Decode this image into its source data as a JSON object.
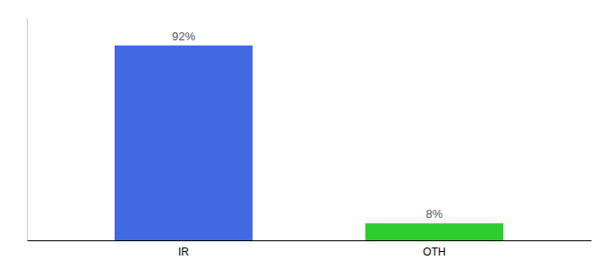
{
  "chart_data": {
    "type": "bar",
    "categories": [
      "IR",
      "OTH"
    ],
    "values": [
      92,
      8
    ],
    "value_labels": [
      "92%",
      "8%"
    ],
    "colors": [
      "#4169e1",
      "#2ecc2e"
    ],
    "ylim": [
      0,
      105
    ],
    "data_labels": true,
    "tick_labels": "x"
  }
}
